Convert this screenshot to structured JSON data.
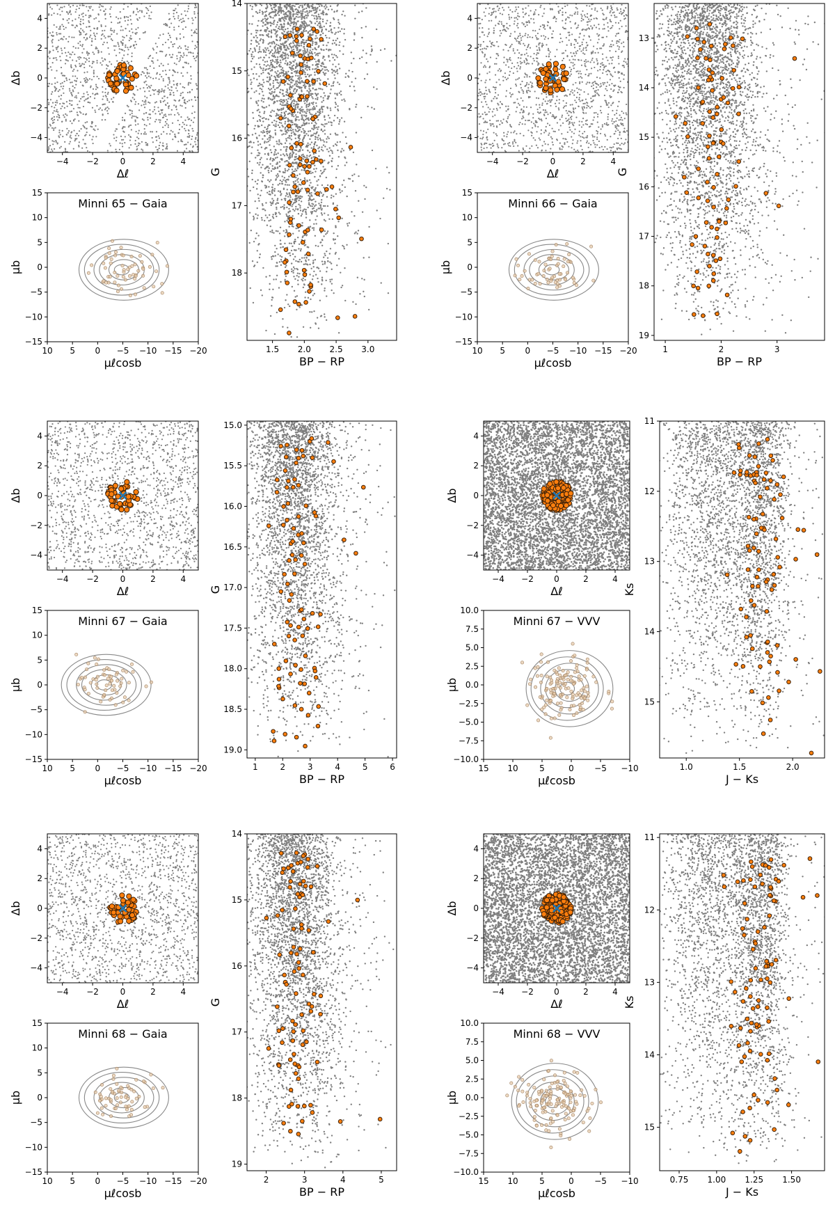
{
  "figure": {
    "colors": {
      "field_star": "#7f7f7f",
      "member_fill": "#ff7f0e",
      "member_edge": "#3a2008",
      "center_marker": "#1f77b4",
      "contour": "#888888",
      "pm_member": "#e6c9a8"
    }
  },
  "chart_data": [
    {
      "id": "m65-sky",
      "type": "scatter",
      "kind": "sky",
      "xlabel": "Δℓ",
      "ylabel": "Δb",
      "xlim": [
        -5,
        5
      ],
      "ylim": [
        -5,
        5
      ],
      "xticks": [
        "−4",
        "−2",
        "0",
        "2",
        "4"
      ],
      "yticks": [
        "−4",
        "−2",
        "0",
        "2",
        "4"
      ],
      "center": [
        0.0,
        0.0
      ],
      "members_radius": 1.0,
      "field_gap": "diagonal band without stars"
    },
    {
      "id": "m65-pm",
      "type": "scatter",
      "kind": "pm",
      "title": "Minni 65 − Gaia",
      "xlabel": "μℓcosb",
      "ylabel": "μb",
      "xlim": [
        10,
        -20
      ],
      "ylim": [
        -15,
        15
      ],
      "xticks": [
        "10",
        "5",
        "0",
        "−5",
        "−10",
        "−15",
        "−20"
      ],
      "yticks": [
        "−15",
        "−10",
        "−5",
        "0",
        "5",
        "10",
        "15"
      ],
      "contour_center": [
        -5.0,
        -0.5
      ]
    },
    {
      "id": "m65-cmd",
      "type": "scatter",
      "kind": "cmd",
      "xlabel": "BP − RP",
      "ylabel": "G",
      "xlim": [
        1.1,
        3.45
      ],
      "ylim": [
        19.0,
        14.0
      ],
      "xticks": [
        "1.5",
        "2.0",
        "2.5",
        "3.0"
      ],
      "yticks": [
        "14",
        "15",
        "16",
        "17",
        "18"
      ]
    },
    {
      "id": "m66-sky",
      "type": "scatter",
      "kind": "sky",
      "xlabel": "Δℓ",
      "ylabel": "Δb",
      "xlim": [
        -5,
        5
      ],
      "ylim": [
        -5,
        5
      ],
      "xticks": [
        "−4",
        "−2",
        "0",
        "2",
        "4"
      ],
      "yticks": [
        "−4",
        "−2",
        "0",
        "2",
        "4"
      ],
      "center": [
        0.0,
        0.0
      ],
      "members_radius": 1.0
    },
    {
      "id": "m66-pm",
      "type": "scatter",
      "kind": "pm",
      "title": "Minni 66 − Gaia",
      "xlabel": "μℓcosb",
      "ylabel": "μb",
      "xlim": [
        10,
        -20
      ],
      "ylim": [
        -15,
        15
      ],
      "xticks": [
        "10",
        "5",
        "0",
        "−5",
        "−10",
        "−15",
        "−20"
      ],
      "yticks": [
        "−15",
        "−10",
        "−5",
        "0",
        "5",
        "10",
        "15"
      ],
      "contour_center": [
        -5.0,
        -0.5
      ]
    },
    {
      "id": "m66-cmd",
      "type": "scatter",
      "kind": "cmd",
      "xlabel": "BP − RP",
      "ylabel": "G",
      "xlim": [
        0.8,
        3.85
      ],
      "ylim": [
        19.1,
        12.3
      ],
      "xticks": [
        "1",
        "2",
        "3"
      ],
      "yticks": [
        "13",
        "14",
        "15",
        "16",
        "17",
        "18",
        "19"
      ]
    },
    {
      "id": "m67-sky",
      "type": "scatter",
      "kind": "sky",
      "xlabel": "Δℓ",
      "ylabel": "Δb",
      "xlim": [
        -5,
        5
      ],
      "ylim": [
        -5,
        5
      ],
      "xticks": [
        "−4",
        "−2",
        "0",
        "2",
        "4"
      ],
      "yticks": [
        "−4",
        "−2",
        "0",
        "2",
        "4"
      ],
      "center": [
        0.0,
        0.0
      ],
      "members_radius": 1.0
    },
    {
      "id": "m67-pm",
      "type": "scatter",
      "kind": "pm",
      "title": "Minni 67 − Gaia",
      "xlabel": "μℓcosb",
      "ylabel": "μb",
      "xlim": [
        10,
        -20
      ],
      "ylim": [
        -15,
        15
      ],
      "xticks": [
        "10",
        "5",
        "0",
        "−5",
        "−10",
        "−15",
        "−20"
      ],
      "yticks": [
        "−15",
        "−10",
        "−5",
        "0",
        "5",
        "10",
        "15"
      ],
      "contour_center": [
        -1.5,
        0.0
      ]
    },
    {
      "id": "m67-cmd",
      "type": "scatter",
      "kind": "cmd",
      "xlabel": "BP − RP",
      "ylabel": "G",
      "xlim": [
        0.7,
        6.15
      ],
      "ylim": [
        19.1,
        14.95
      ],
      "xticks": [
        "1",
        "2",
        "3",
        "4",
        "5",
        "6"
      ],
      "yticks": [
        "15.0",
        "15.5",
        "16.0",
        "16.5",
        "17.0",
        "17.5",
        "18.0",
        "18.5",
        "19.0"
      ]
    },
    {
      "id": "m67v-sky",
      "type": "scatter",
      "kind": "sky",
      "xlabel": "Δℓ",
      "ylabel": "Δb",
      "xlim": [
        -5,
        5
      ],
      "ylim": [
        -5,
        5
      ],
      "xticks": [
        "−4",
        "−2",
        "0",
        "2",
        "4"
      ],
      "yticks": [
        "−4",
        "−2",
        "0",
        "2",
        "4"
      ],
      "center": [
        0.0,
        0.0
      ],
      "members_radius": 1.0,
      "dense": true
    },
    {
      "id": "m67v-pm",
      "type": "scatter",
      "kind": "pm",
      "title": "Minni 67 − VVV",
      "xlabel": "μℓcosb",
      "ylabel": "μb",
      "xlim": [
        15,
        -10
      ],
      "ylim": [
        -10,
        10
      ],
      "xticks": [
        "15",
        "10",
        "5",
        "0",
        "−5",
        "−10"
      ],
      "yticks": [
        "−10.0",
        "−7.5",
        "−5.0",
        "−2.5",
        "0.0",
        "2.5",
        "5.0",
        "7.5",
        "10.0"
      ],
      "contour_center": [
        0.5,
        -0.5
      ]
    },
    {
      "id": "m67v-cmd",
      "type": "scatter",
      "kind": "cmd",
      "xlabel": "J − Ks",
      "ylabel": "Ks",
      "xlim": [
        0.75,
        2.3
      ],
      "ylim": [
        15.8,
        11.0
      ],
      "xticks": [
        "1.0",
        "1.5",
        "2.0"
      ],
      "yticks": [
        "11",
        "12",
        "13",
        "14",
        "15"
      ]
    },
    {
      "id": "m68-sky",
      "type": "scatter",
      "kind": "sky",
      "xlabel": "Δℓ",
      "ylabel": "Δb",
      "xlim": [
        -5,
        5
      ],
      "ylim": [
        -5,
        5
      ],
      "xticks": [
        "−4",
        "−2",
        "0",
        "2",
        "4"
      ],
      "yticks": [
        "−4",
        "−2",
        "0",
        "2",
        "4"
      ],
      "center": [
        0.0,
        0.0
      ],
      "members_radius": 1.0
    },
    {
      "id": "m68-pm",
      "type": "scatter",
      "kind": "pm",
      "title": "Minni 68 − Gaia",
      "xlabel": "μℓcosb",
      "ylabel": "μb",
      "xlim": [
        10,
        -20
      ],
      "ylim": [
        -15,
        15
      ],
      "xticks": [
        "10",
        "5",
        "0",
        "−5",
        "−10",
        "−15",
        "−20"
      ],
      "yticks": [
        "−15",
        "−10",
        "−5",
        "0",
        "5",
        "10",
        "15"
      ],
      "contour_center": [
        -5.0,
        0.0
      ]
    },
    {
      "id": "m68-cmd",
      "type": "scatter",
      "kind": "cmd",
      "xlabel": "BP − RP",
      "ylabel": "G",
      "xlim": [
        1.5,
        5.4
      ],
      "ylim": [
        19.1,
        14.0
      ],
      "xticks": [
        "2",
        "3",
        "4",
        "5"
      ],
      "yticks": [
        "14",
        "15",
        "16",
        "17",
        "18",
        "19"
      ]
    },
    {
      "id": "m68v-sky",
      "type": "scatter",
      "kind": "sky",
      "xlabel": "Δℓ",
      "ylabel": "Δb",
      "xlim": [
        -5,
        5
      ],
      "ylim": [
        -5,
        5
      ],
      "xticks": [
        "−4",
        "−2",
        "0",
        "2",
        "4"
      ],
      "yticks": [
        "−4",
        "−2",
        "0",
        "2",
        "4"
      ],
      "center": [
        0.0,
        0.0
      ],
      "members_radius": 1.0,
      "dense": true
    },
    {
      "id": "m68v-pm",
      "type": "scatter",
      "kind": "pm",
      "title": "Minni 68 − VVV",
      "xlabel": "μℓcosb",
      "ylabel": "μb",
      "xlim": [
        15,
        -10
      ],
      "ylim": [
        -10,
        10
      ],
      "xticks": [
        "15",
        "10",
        "5",
        "0",
        "−5",
        "−10"
      ],
      "yticks": [
        "−10.0",
        "−7.5",
        "−5.0",
        "−2.5",
        "0.0",
        "2.5",
        "5.0",
        "7.5",
        "10.0"
      ],
      "contour_center": [
        3.0,
        -0.5
      ]
    },
    {
      "id": "m68v-cmd",
      "type": "scatter",
      "kind": "cmd",
      "xlabel": "J − Ks",
      "ylabel": "Ks",
      "xlim": [
        0.62,
        1.72
      ],
      "ylim": [
        15.6,
        10.95
      ],
      "xticks": [
        "0.75",
        "1.00",
        "1.25",
        "1.50"
      ],
      "yticks": [
        "11",
        "12",
        "13",
        "14",
        "15"
      ]
    }
  ]
}
